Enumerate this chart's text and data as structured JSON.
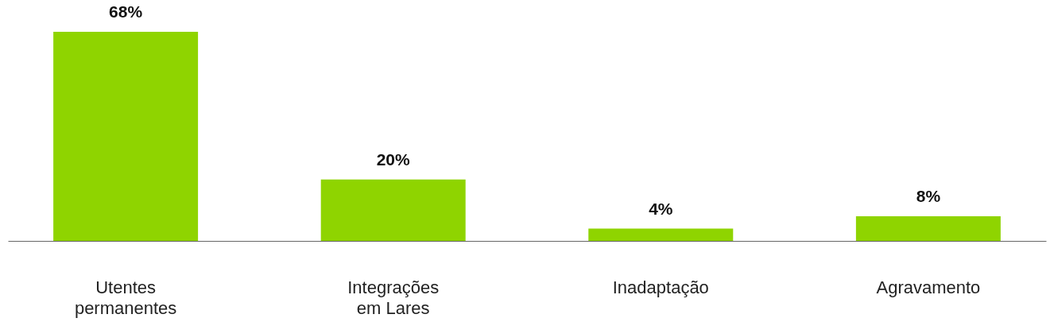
{
  "chart_data": {
    "type": "bar",
    "categories": [
      "Utentes permanentes",
      "Integrações em Lares",
      "Inadaptação",
      "Agravamento"
    ],
    "values": [
      68,
      20,
      4,
      8
    ],
    "value_labels": [
      "68%",
      "20%",
      "4%",
      "8%"
    ],
    "color": "#8fd400"
  }
}
